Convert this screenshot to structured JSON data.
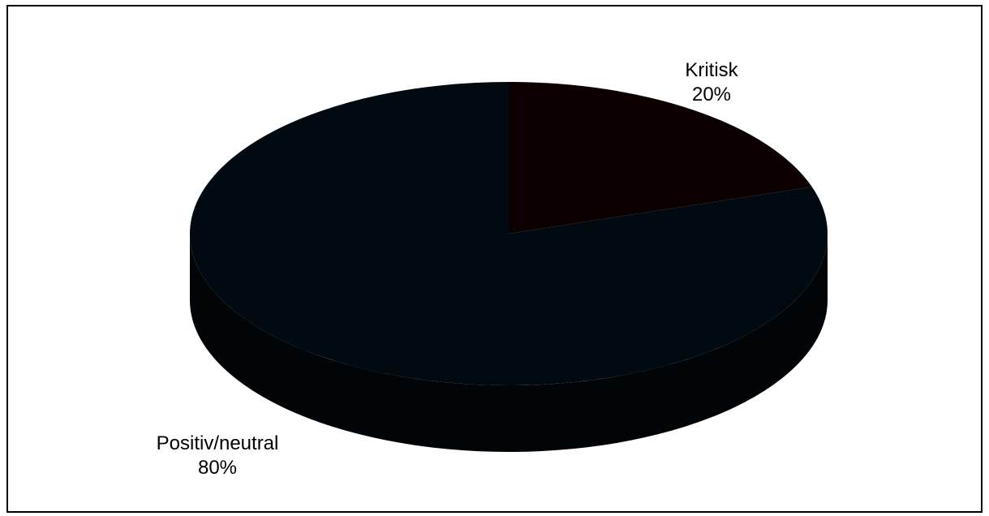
{
  "chart_data": {
    "type": "pie",
    "style": "3d",
    "slices": [
      {
        "label": "Kritisk",
        "value": 20,
        "percent_label": "20%",
        "color": "#0c0000"
      },
      {
        "label": "Positiv/neutral",
        "value": 80,
        "percent_label": "80%",
        "color": "#010a10"
      }
    ],
    "side_color": "#010508",
    "label_color": "#000000",
    "border_color": "#000000",
    "background_color": "#ffffff"
  }
}
